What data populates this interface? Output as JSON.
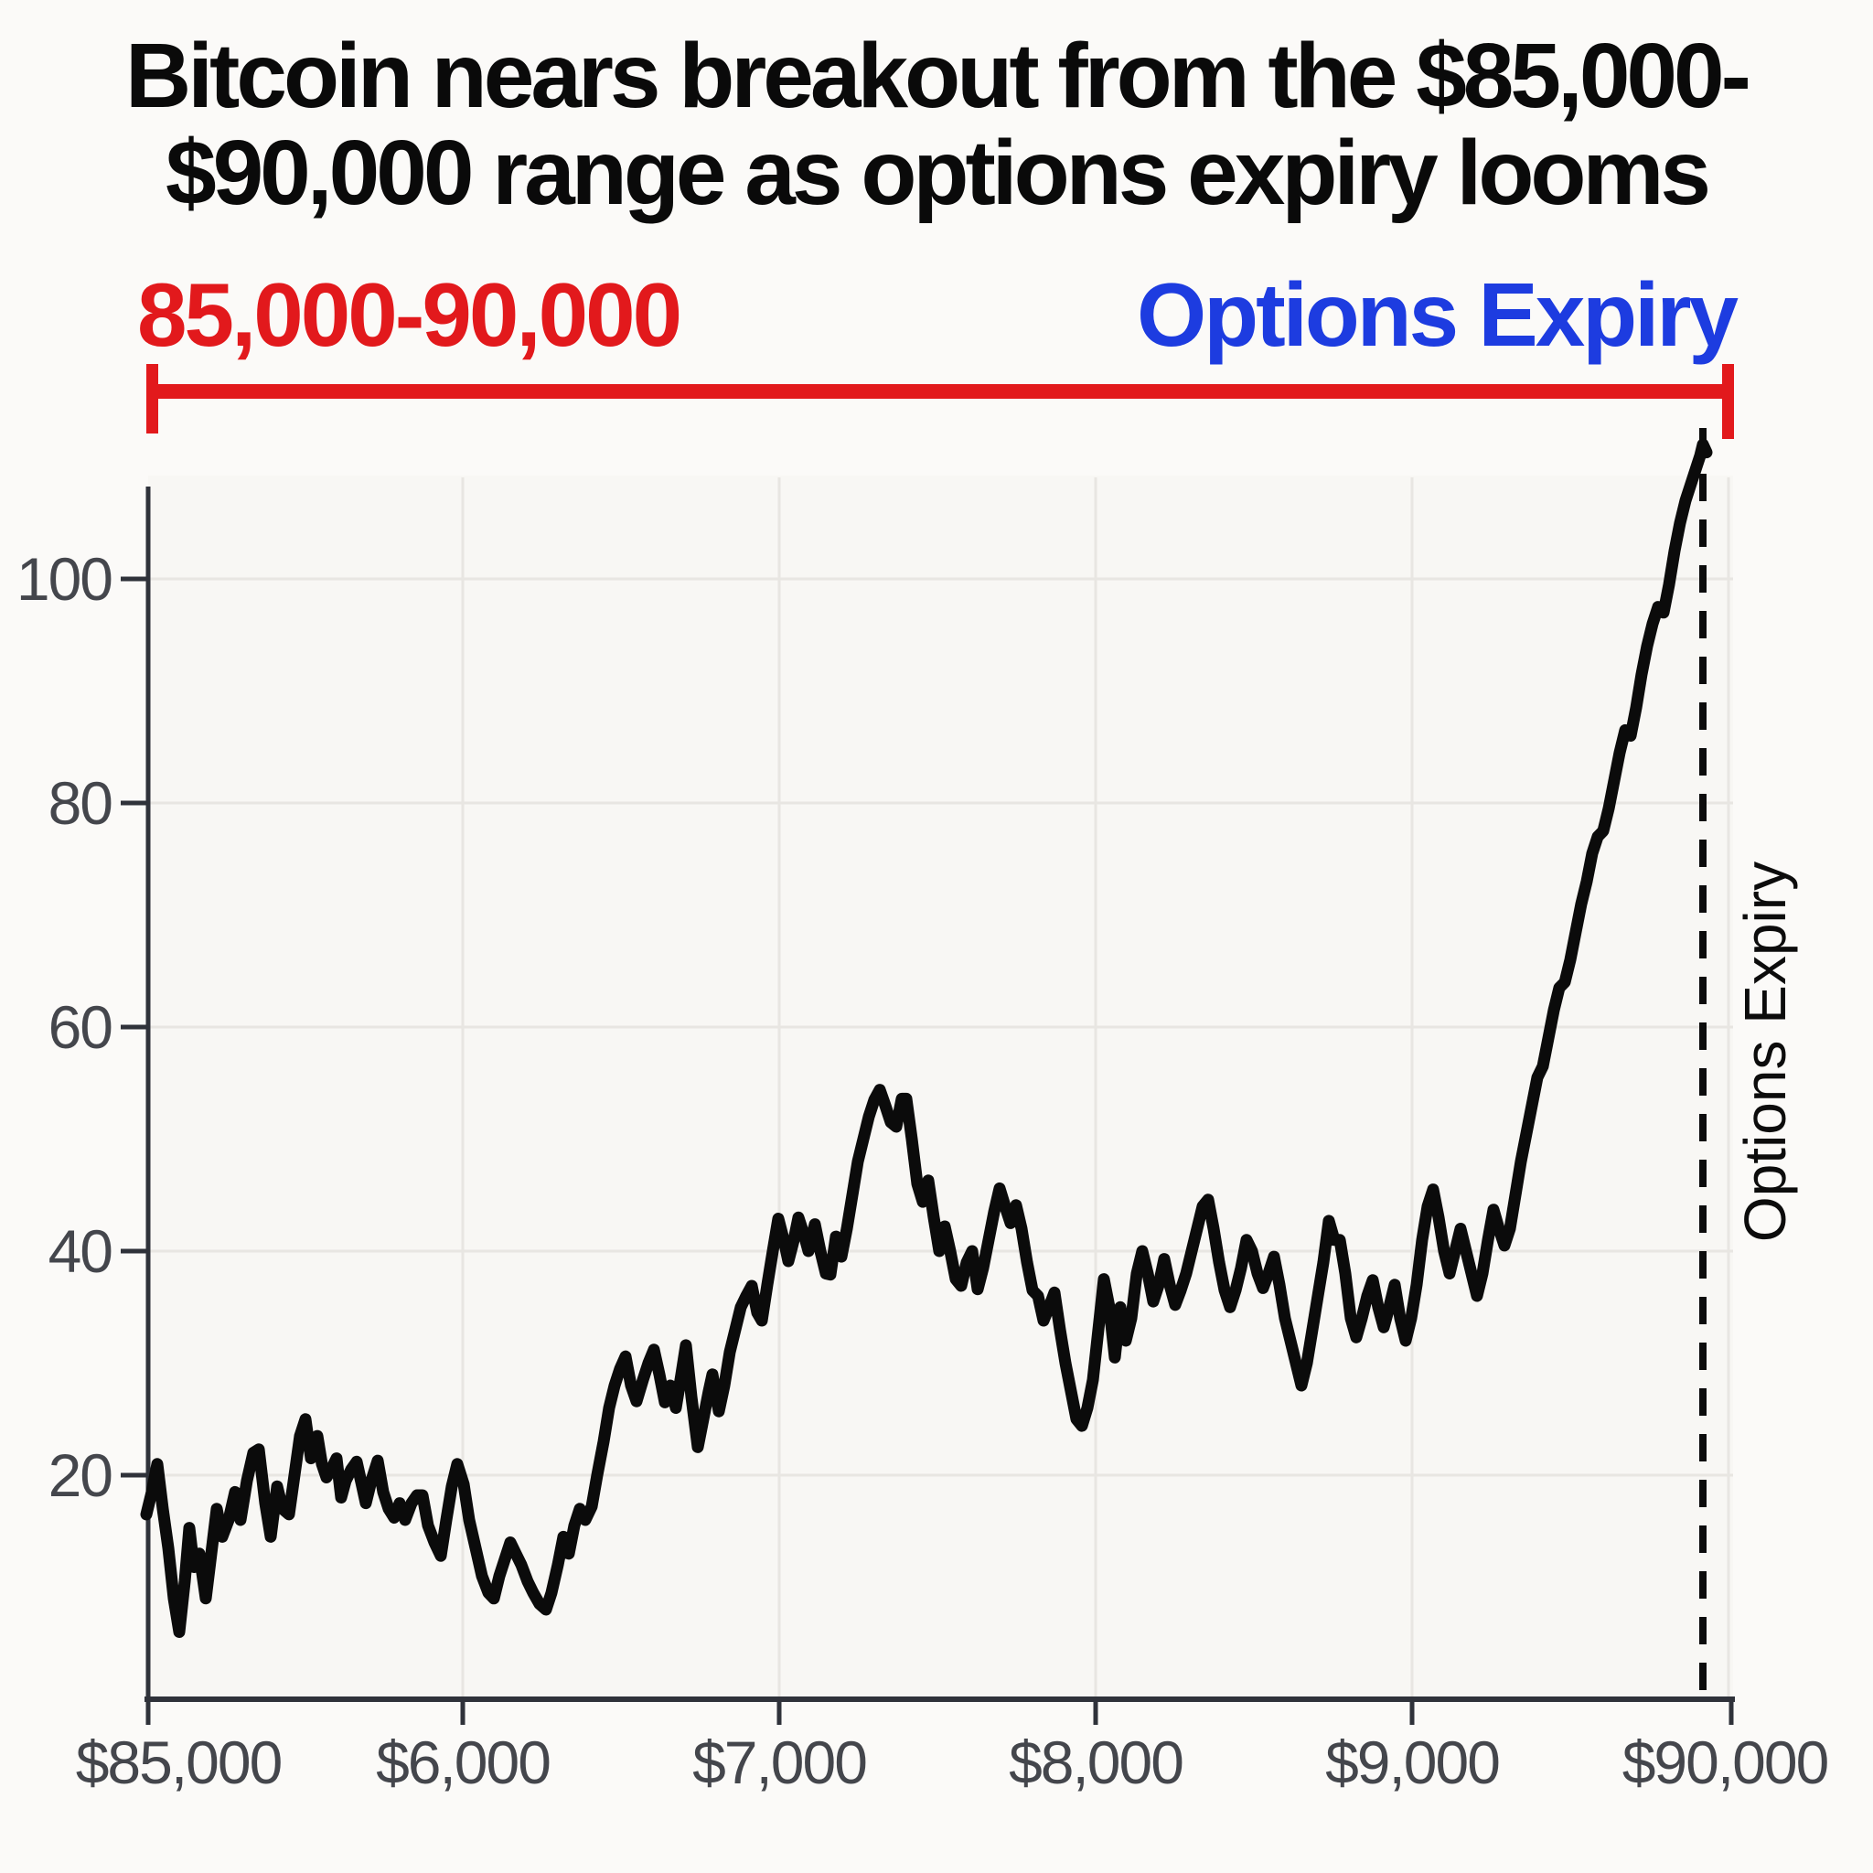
{
  "title": {
    "line1": "Bitcoin nears breakout from the $85,000-",
    "line2": "$90,000 range as options expiry looms"
  },
  "annotations": {
    "range_label": "85,000-90,000",
    "range_color": "#e2191c",
    "expiry_label": "Options Expiry",
    "expiry_color": "#1d3ce0",
    "expiry_axis_label": "Options Expiry"
  },
  "chart_data": {
    "type": "line",
    "title": "Bitcoin nears breakout from the $85,000-$90,000 range as options expiry looms",
    "xlabel": "",
    "ylabel": "",
    "x_tick_labels": [
      "$85,000",
      "$6,000",
      "$7,000",
      "$8,000",
      "$9,000",
      "$90,000"
    ],
    "y_tick_labels": [
      "100",
      "80",
      "60",
      "40",
      "20"
    ],
    "y_tick_values": [
      100,
      80,
      60,
      40,
      20
    ],
    "ylim": [
      0,
      115
    ],
    "grid": true,
    "line_color": "#0b0b0b",
    "dashed_marker_x_label": "$90,000",
    "series": [
      [
        160,
        16.5
      ],
      [
        166,
        18.5
      ],
      [
        172,
        21
      ],
      [
        178,
        17
      ],
      [
        184,
        13.5
      ],
      [
        190,
        9
      ],
      [
        196,
        6
      ],
      [
        202,
        10.5
      ],
      [
        207,
        15.3
      ],
      [
        212,
        11.8
      ],
      [
        218,
        13
      ],
      [
        225,
        9
      ],
      [
        231,
        13
      ],
      [
        237,
        17
      ],
      [
        243,
        14.5
      ],
      [
        250,
        16
      ],
      [
        257,
        18.5
      ],
      [
        263,
        16
      ],
      [
        270,
        19.5
      ],
      [
        277,
        22
      ],
      [
        283,
        22.3
      ],
      [
        290,
        17.5
      ],
      [
        296,
        14.5
      ],
      [
        303,
        19
      ],
      [
        309,
        17
      ],
      [
        316,
        16.5
      ],
      [
        322,
        20
      ],
      [
        328,
        23.5
      ],
      [
        334,
        25
      ],
      [
        340,
        21.5
      ],
      [
        347,
        23.5
      ],
      [
        352,
        21
      ],
      [
        357,
        19.8
      ],
      [
        362,
        20.5
      ],
      [
        368,
        21.5
      ],
      [
        373,
        18
      ],
      [
        378,
        19.5
      ],
      [
        384,
        20.5
      ],
      [
        390,
        21.2
      ],
      [
        396,
        19
      ],
      [
        400,
        17.5
      ],
      [
        406,
        19.5
      ],
      [
        413,
        21.3
      ],
      [
        419,
        18.5
      ],
      [
        425,
        17
      ],
      [
        431,
        16.2
      ],
      [
        437,
        17.5
      ],
      [
        443,
        16
      ],
      [
        450,
        17.5
      ],
      [
        456,
        18.2
      ],
      [
        462,
        18.2
      ],
      [
        468,
        15.5
      ],
      [
        475,
        14
      ],
      [
        482,
        12.8
      ],
      [
        488,
        16
      ],
      [
        494,
        19
      ],
      [
        500,
        21
      ],
      [
        507,
        19.2
      ],
      [
        513,
        16
      ],
      [
        520,
        13.5
      ],
      [
        527,
        11
      ],
      [
        534,
        9.5
      ],
      [
        540,
        9
      ],
      [
        546,
        11
      ],
      [
        552,
        12.5
      ],
      [
        558,
        14
      ],
      [
        564,
        13
      ],
      [
        570,
        12
      ],
      [
        577,
        10.5
      ],
      [
        583,
        9.5
      ],
      [
        590,
        8.5
      ],
      [
        597,
        8
      ],
      [
        603,
        9.5
      ],
      [
        610,
        12
      ],
      [
        616,
        14.5
      ],
      [
        622,
        13
      ],
      [
        628,
        15.5
      ],
      [
        634,
        17
      ],
      [
        640,
        16
      ],
      [
        647,
        17.2
      ],
      [
        653,
        20
      ],
      [
        660,
        23
      ],
      [
        666,
        26
      ],
      [
        672,
        28
      ],
      [
        678,
        29.5
      ],
      [
        684,
        30.6
      ],
      [
        690,
        28
      ],
      [
        696,
        26.6
      ],
      [
        703,
        28.5
      ],
      [
        709,
        30
      ],
      [
        715,
        31.2
      ],
      [
        721,
        29
      ],
      [
        727,
        26.5
      ],
      [
        733,
        28
      ],
      [
        739,
        26
      ],
      [
        745,
        29
      ],
      [
        750,
        31.6
      ],
      [
        756,
        27
      ],
      [
        763,
        22.5
      ],
      [
        769,
        25
      ],
      [
        775,
        27.5
      ],
      [
        779,
        29
      ],
      [
        786,
        25.7
      ],
      [
        792,
        28
      ],
      [
        798,
        31
      ],
      [
        804,
        33
      ],
      [
        810,
        35
      ],
      [
        816,
        36
      ],
      [
        822,
        36.9
      ],
      [
        828,
        34.5
      ],
      [
        833,
        33.8
      ],
      [
        839,
        37
      ],
      [
        845,
        40
      ],
      [
        851,
        42.9
      ],
      [
        857,
        41
      ],
      [
        862,
        39.1
      ],
      [
        868,
        41
      ],
      [
        873,
        43
      ],
      [
        879,
        41.5
      ],
      [
        884,
        40
      ],
      [
        891,
        42.4
      ],
      [
        897,
        40
      ],
      [
        903,
        38
      ],
      [
        908,
        37.9
      ],
      [
        914,
        41.3
      ],
      [
        920,
        39.5
      ],
      [
        926,
        42
      ],
      [
        932,
        45
      ],
      [
        938,
        48
      ],
      [
        944,
        50
      ],
      [
        950,
        52
      ],
      [
        956,
        53.5
      ],
      [
        962,
        54.4
      ],
      [
        968,
        53
      ],
      [
        974,
        51.5
      ],
      [
        980,
        51.1
      ],
      [
        986,
        53.6
      ],
      [
        991,
        53.6
      ],
      [
        997,
        50
      ],
      [
        1003,
        46
      ],
      [
        1009,
        44.4
      ],
      [
        1015,
        46.3
      ],
      [
        1021,
        43
      ],
      [
        1027,
        40
      ],
      [
        1033,
        42.2
      ],
      [
        1039,
        40
      ],
      [
        1045,
        37.5
      ],
      [
        1051,
        36.9
      ],
      [
        1057,
        39
      ],
      [
        1063,
        40
      ],
      [
        1069,
        36.6
      ],
      [
        1075,
        38.5
      ],
      [
        1081,
        41
      ],
      [
        1087,
        43.5
      ],
      [
        1093,
        45.6
      ],
      [
        1099,
        44
      ],
      [
        1105,
        42.5
      ],
      [
        1111,
        44.1
      ],
      [
        1117,
        42
      ],
      [
        1123,
        39
      ],
      [
        1129,
        36.5
      ],
      [
        1135,
        36
      ],
      [
        1141,
        33.8
      ],
      [
        1147,
        35
      ],
      [
        1153,
        36.3
      ],
      [
        1159,
        33
      ],
      [
        1165,
        30
      ],
      [
        1171,
        27.5
      ],
      [
        1177,
        25
      ],
      [
        1183,
        24.4
      ],
      [
        1189,
        26
      ],
      [
        1195,
        28.5
      ],
      [
        1201,
        33
      ],
      [
        1207,
        37.5
      ],
      [
        1213,
        35
      ],
      [
        1219,
        30.5
      ],
      [
        1225,
        35
      ],
      [
        1231,
        32
      ],
      [
        1237,
        34
      ],
      [
        1243,
        38
      ],
      [
        1249,
        40
      ],
      [
        1255,
        38
      ],
      [
        1261,
        35.5
      ],
      [
        1267,
        37
      ],
      [
        1273,
        39.3
      ],
      [
        1279,
        37
      ],
      [
        1285,
        35.2
      ],
      [
        1291,
        36.5
      ],
      [
        1297,
        38
      ],
      [
        1303,
        40
      ],
      [
        1309,
        42
      ],
      [
        1315,
        44
      ],
      [
        1321,
        44.6
      ],
      [
        1327,
        42
      ],
      [
        1333,
        39
      ],
      [
        1339,
        36.5
      ],
      [
        1345,
        35
      ],
      [
        1351,
        36.5
      ],
      [
        1357,
        38.5
      ],
      [
        1363,
        41
      ],
      [
        1369,
        40
      ],
      [
        1375,
        38
      ],
      [
        1381,
        36.7
      ],
      [
        1387,
        38
      ],
      [
        1393,
        39.5
      ],
      [
        1399,
        37
      ],
      [
        1405,
        34
      ],
      [
        1411,
        32
      ],
      [
        1417,
        30
      ],
      [
        1423,
        28
      ],
      [
        1429,
        30
      ],
      [
        1435,
        33
      ],
      [
        1441,
        36
      ],
      [
        1447,
        39
      ],
      [
        1453,
        42.7
      ],
      [
        1459,
        41
      ],
      [
        1465,
        41
      ],
      [
        1471,
        38
      ],
      [
        1477,
        34
      ],
      [
        1483,
        32.3
      ],
      [
        1489,
        34
      ],
      [
        1495,
        36
      ],
      [
        1501,
        37.4
      ],
      [
        1507,
        35
      ],
      [
        1513,
        33.2
      ],
      [
        1519,
        35
      ],
      [
        1525,
        37
      ],
      [
        1531,
        34
      ],
      [
        1537,
        32
      ],
      [
        1543,
        34
      ],
      [
        1549,
        37
      ],
      [
        1555,
        41
      ],
      [
        1561,
        44
      ],
      [
        1567,
        45.5
      ],
      [
        1573,
        43
      ],
      [
        1579,
        40
      ],
      [
        1585,
        38
      ],
      [
        1591,
        40
      ],
      [
        1597,
        42
      ],
      [
        1603,
        40
      ],
      [
        1609,
        38
      ],
      [
        1615,
        36
      ],
      [
        1621,
        38
      ],
      [
        1627,
        41
      ],
      [
        1633,
        43.7
      ],
      [
        1639,
        42
      ],
      [
        1645,
        40.5
      ],
      [
        1651,
        42
      ],
      [
        1657,
        45
      ],
      [
        1663,
        48
      ],
      [
        1669,
        50.5
      ],
      [
        1675,
        53
      ],
      [
        1681,
        55.5
      ],
      [
        1687,
        56.5
      ],
      [
        1693,
        59
      ],
      [
        1699,
        61.5
      ],
      [
        1705,
        63.5
      ],
      [
        1711,
        64
      ],
      [
        1717,
        66
      ],
      [
        1723,
        68.5
      ],
      [
        1729,
        71
      ],
      [
        1735,
        73
      ],
      [
        1741,
        75.5
      ],
      [
        1747,
        77
      ],
      [
        1753,
        77.5
      ],
      [
        1759,
        79.5
      ],
      [
        1765,
        82
      ],
      [
        1771,
        84.5
      ],
      [
        1777,
        86.5
      ],
      [
        1783,
        86
      ],
      [
        1789,
        88.5
      ],
      [
        1795,
        91.5
      ],
      [
        1801,
        94
      ],
      [
        1807,
        96
      ],
      [
        1813,
        97.5
      ],
      [
        1819,
        97
      ],
      [
        1825,
        99.5
      ],
      [
        1831,
        102.5
      ],
      [
        1837,
        105
      ],
      [
        1843,
        107
      ],
      [
        1849,
        108.5
      ],
      [
        1855,
        110
      ],
      [
        1859,
        111
      ],
      [
        1862,
        112
      ],
      [
        1866,
        111.3
      ]
    ]
  }
}
